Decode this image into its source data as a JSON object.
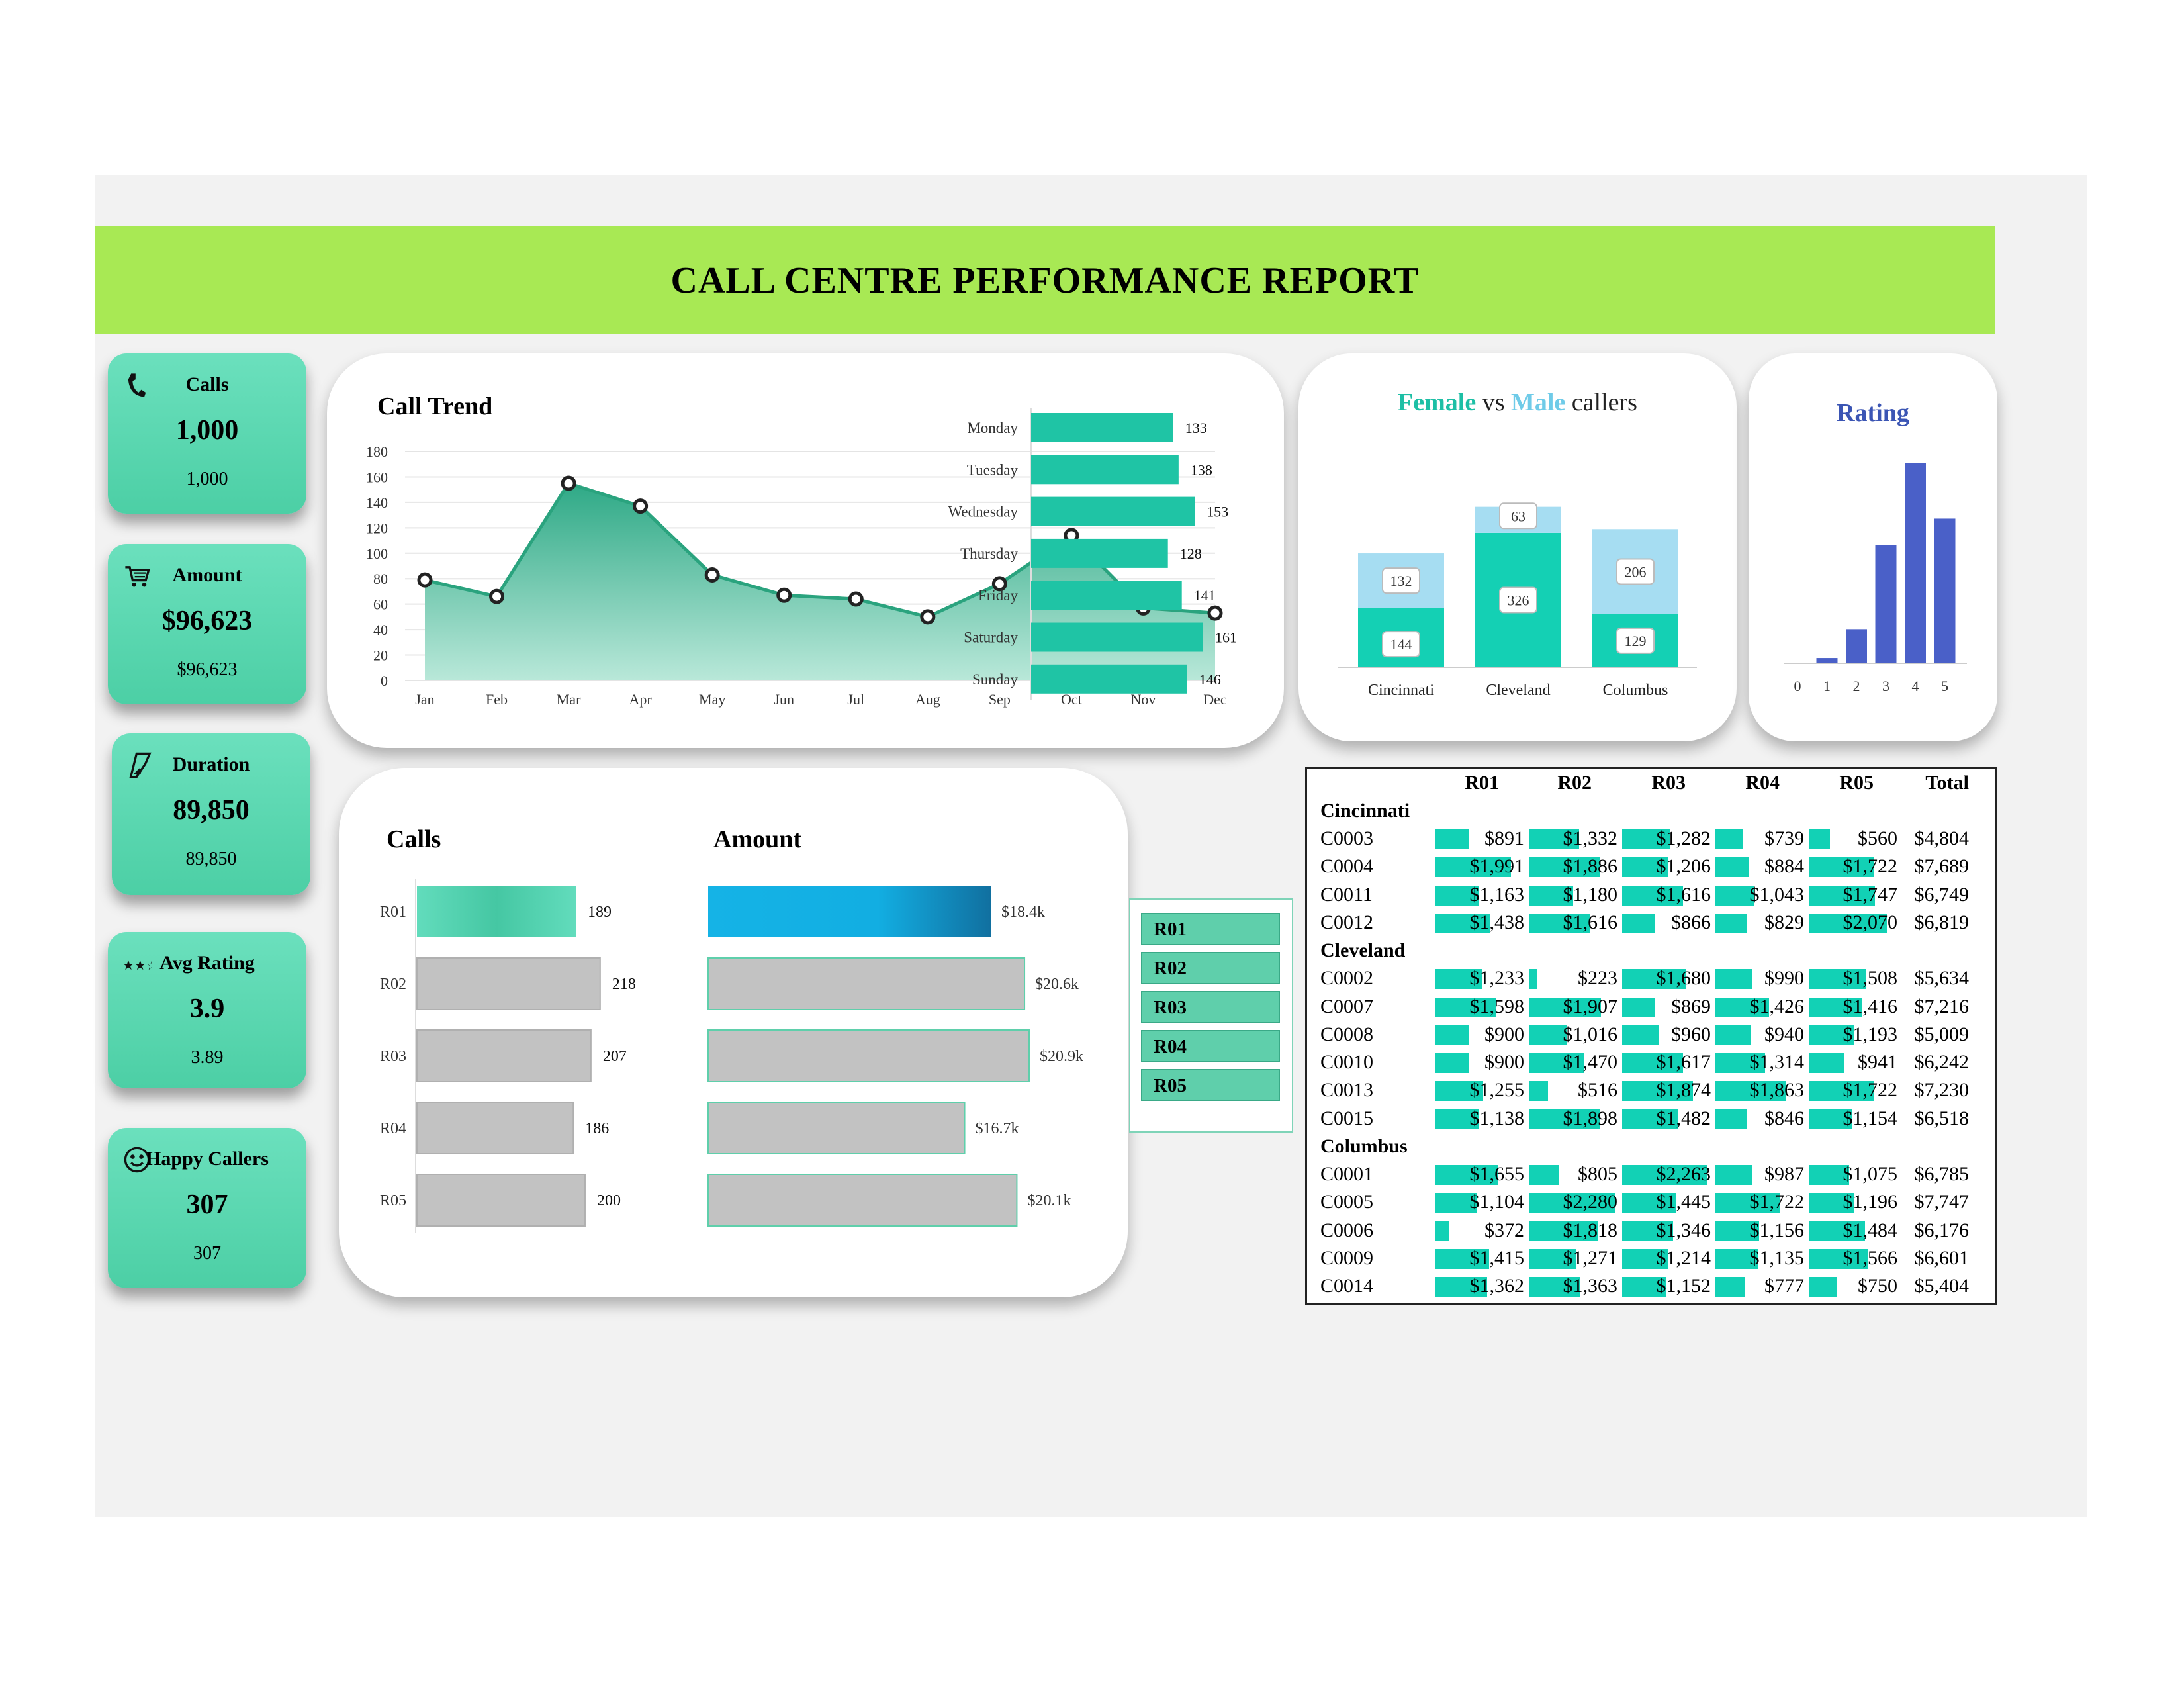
{
  "report_title": "CALL CENTRE PERFORMANCE REPORT",
  "kpis": [
    {
      "label": "Calls",
      "value": "1,000",
      "sub": "1,000",
      "icon": "phone-icon"
    },
    {
      "label": "Amount",
      "value": "$96,623",
      "sub": "$96,623",
      "icon": "shopping-cart-icon"
    },
    {
      "label": "Duration",
      "value": "89,850",
      "sub": "89,850",
      "icon": "hourglass-icon"
    },
    {
      "label": "Avg Rating",
      "value": "3.9",
      "sub": "3.89",
      "icon": "stars-icon"
    },
    {
      "label": "Happy Callers",
      "value": "307",
      "sub": "307",
      "icon": "smiley-icon"
    }
  ],
  "colors": {
    "banner": "#a8e954",
    "teal": "#1dc4a6",
    "light_blue": "#a6ddf2",
    "rating_bar": "#4a60c8",
    "pivot_bar": "#12d1b5"
  },
  "call_trend": {
    "title": "Call Trend"
  },
  "weekday": {
    "title": ""
  },
  "gender": {
    "title_female": "Female",
    "title_vs": " vs ",
    "title_male": "Male",
    "title_rest": " callers"
  },
  "rating": {
    "title": "Rating"
  },
  "rep_panel": {
    "calls_title": "Calls",
    "amount_title": "Amount"
  },
  "slicer": {
    "items": [
      "R01",
      "R02",
      "R03",
      "R04",
      "R05"
    ]
  },
  "chart_data": [
    {
      "type": "area",
      "title": "Call Trend",
      "categories": [
        "Jan",
        "Feb",
        "Mar",
        "Apr",
        "May",
        "Jun",
        "Jul",
        "Aug",
        "Sep",
        "Oct",
        "Nov",
        "Dec"
      ],
      "values": [
        79,
        66,
        155,
        137,
        83,
        67,
        64,
        50,
        76,
        114,
        57,
        53
      ],
      "yticks": [
        "0",
        "20",
        "40",
        "60",
        "80",
        "100",
        "120",
        "140",
        "160",
        "180"
      ],
      "ylim": [
        0,
        180
      ]
    },
    {
      "type": "bar",
      "orientation": "horizontal",
      "categories": [
        "Monday",
        "Tuesday",
        "Wednesday",
        "Thursday",
        "Friday",
        "Saturday",
        "Sunday"
      ],
      "values": [
        133,
        138,
        153,
        128,
        141,
        161,
        146
      ]
    },
    {
      "type": "bar",
      "stacked": true,
      "title": "Female vs Male callers",
      "categories": [
        "Cincinnati",
        "Cleveland",
        "Columbus"
      ],
      "series": [
        {
          "name": "Female",
          "values": [
            144,
            326,
            129
          ]
        },
        {
          "name": "Male",
          "values": [
            132,
            63,
            206
          ]
        }
      ]
    },
    {
      "type": "bar",
      "title": "Rating",
      "categories": [
        "0",
        "1",
        "2",
        "3",
        "4",
        "5"
      ],
      "values": [
        0,
        10,
        65,
        225,
        380,
        275
      ]
    },
    {
      "type": "bar",
      "orientation": "horizontal",
      "title": "Calls",
      "categories": [
        "R01",
        "R02",
        "R03",
        "R04",
        "R05"
      ],
      "values": [
        189,
        218,
        207,
        186,
        200
      ],
      "labels": [
        "189",
        "218",
        "207",
        "186",
        "200"
      ],
      "highlight": "R01"
    },
    {
      "type": "bar",
      "orientation": "horizontal",
      "title": "Amount",
      "categories": [
        "R01",
        "R02",
        "R03",
        "R04",
        "R05"
      ],
      "values": [
        18.4,
        20.6,
        20.9,
        16.7,
        20.1
      ],
      "labels": [
        "$18.4k",
        "$20.6k",
        "$20.9k",
        "$16.7k",
        "$20.1k"
      ],
      "highlight": "R01"
    },
    {
      "type": "table",
      "columns": [
        "",
        "R01",
        "R02",
        "R03",
        "R04",
        "R05",
        "Total"
      ],
      "groups": [
        {
          "name": "Cincinnati",
          "rows": [
            {
              "id": "C0003",
              "values": [
                891,
                1332,
                1282,
                739,
                560
              ],
              "cells": [
                "$891",
                "$1,332",
                "$1,282",
                "$739",
                "$560"
              ],
              "total": "$4,804"
            },
            {
              "id": "C0004",
              "values": [
                1991,
                1886,
                1206,
                884,
                1722
              ],
              "cells": [
                "$1,991",
                "$1,886",
                "$1,206",
                "$884",
                "$1,722"
              ],
              "total": "$7,689"
            },
            {
              "id": "C0011",
              "values": [
                1163,
                1180,
                1616,
                1043,
                1747
              ],
              "cells": [
                "$1,163",
                "$1,180",
                "$1,616",
                "$1,043",
                "$1,747"
              ],
              "total": "$6,749"
            },
            {
              "id": "C0012",
              "values": [
                1438,
                1616,
                866,
                829,
                2070
              ],
              "cells": [
                "$1,438",
                "$1,616",
                "$866",
                "$829",
                "$2,070"
              ],
              "total": "$6,819"
            }
          ]
        },
        {
          "name": "Cleveland",
          "rows": [
            {
              "id": "C0002",
              "values": [
                1233,
                223,
                1680,
                990,
                1508
              ],
              "cells": [
                "$1,233",
                "$223",
                "$1,680",
                "$990",
                "$1,508"
              ],
              "total": "$5,634"
            },
            {
              "id": "C0007",
              "values": [
                1598,
                1907,
                869,
                1426,
                1416
              ],
              "cells": [
                "$1,598",
                "$1,907",
                "$869",
                "$1,426",
                "$1,416"
              ],
              "total": "$7,216"
            },
            {
              "id": "C0008",
              "values": [
                900,
                1016,
                960,
                940,
                1193
              ],
              "cells": [
                "$900",
                "$1,016",
                "$960",
                "$940",
                "$1,193"
              ],
              "total": "$5,009"
            },
            {
              "id": "C0010",
              "values": [
                900,
                1470,
                1617,
                1314,
                941
              ],
              "cells": [
                "$900",
                "$1,470",
                "$1,617",
                "$1,314",
                "$941"
              ],
              "total": "$6,242"
            },
            {
              "id": "C0013",
              "values": [
                1255,
                516,
                1874,
                1863,
                1722
              ],
              "cells": [
                "$1,255",
                "$516",
                "$1,874",
                "$1,863",
                "$1,722"
              ],
              "total": "$7,230"
            },
            {
              "id": "C0015",
              "values": [
                1138,
                1898,
                1482,
                846,
                1154
              ],
              "cells": [
                "$1,138",
                "$1,898",
                "$1,482",
                "$846",
                "$1,154"
              ],
              "total": "$6,518"
            }
          ]
        },
        {
          "name": "Columbus",
          "rows": [
            {
              "id": "C0001",
              "values": [
                1655,
                805,
                2263,
                987,
                1075
              ],
              "cells": [
                "$1,655",
                "$805",
                "$2,263",
                "$987",
                "$1,075"
              ],
              "total": "$6,785"
            },
            {
              "id": "C0005",
              "values": [
                1104,
                2280,
                1445,
                1722,
                1196
              ],
              "cells": [
                "$1,104",
                "$2,280",
                "$1,445",
                "$1,722",
                "$1,196"
              ],
              "total": "$7,747"
            },
            {
              "id": "C0006",
              "values": [
                372,
                1818,
                1346,
                1156,
                1484
              ],
              "cells": [
                "$372",
                "$1,818",
                "$1,346",
                "$1,156",
                "$1,484"
              ],
              "total": "$6,176"
            },
            {
              "id": "C0009",
              "values": [
                1415,
                1271,
                1214,
                1135,
                1566
              ],
              "cells": [
                "$1,415",
                "$1,271",
                "$1,214",
                "$1,135",
                "$1,566"
              ],
              "total": "$6,601"
            },
            {
              "id": "C0014",
              "values": [
                1362,
                1363,
                1152,
                777,
                750
              ],
              "cells": [
                "$1,362",
                "$1,363",
                "$1,152",
                "$777",
                "$750"
              ],
              "total": "$5,404"
            }
          ]
        }
      ]
    }
  ]
}
